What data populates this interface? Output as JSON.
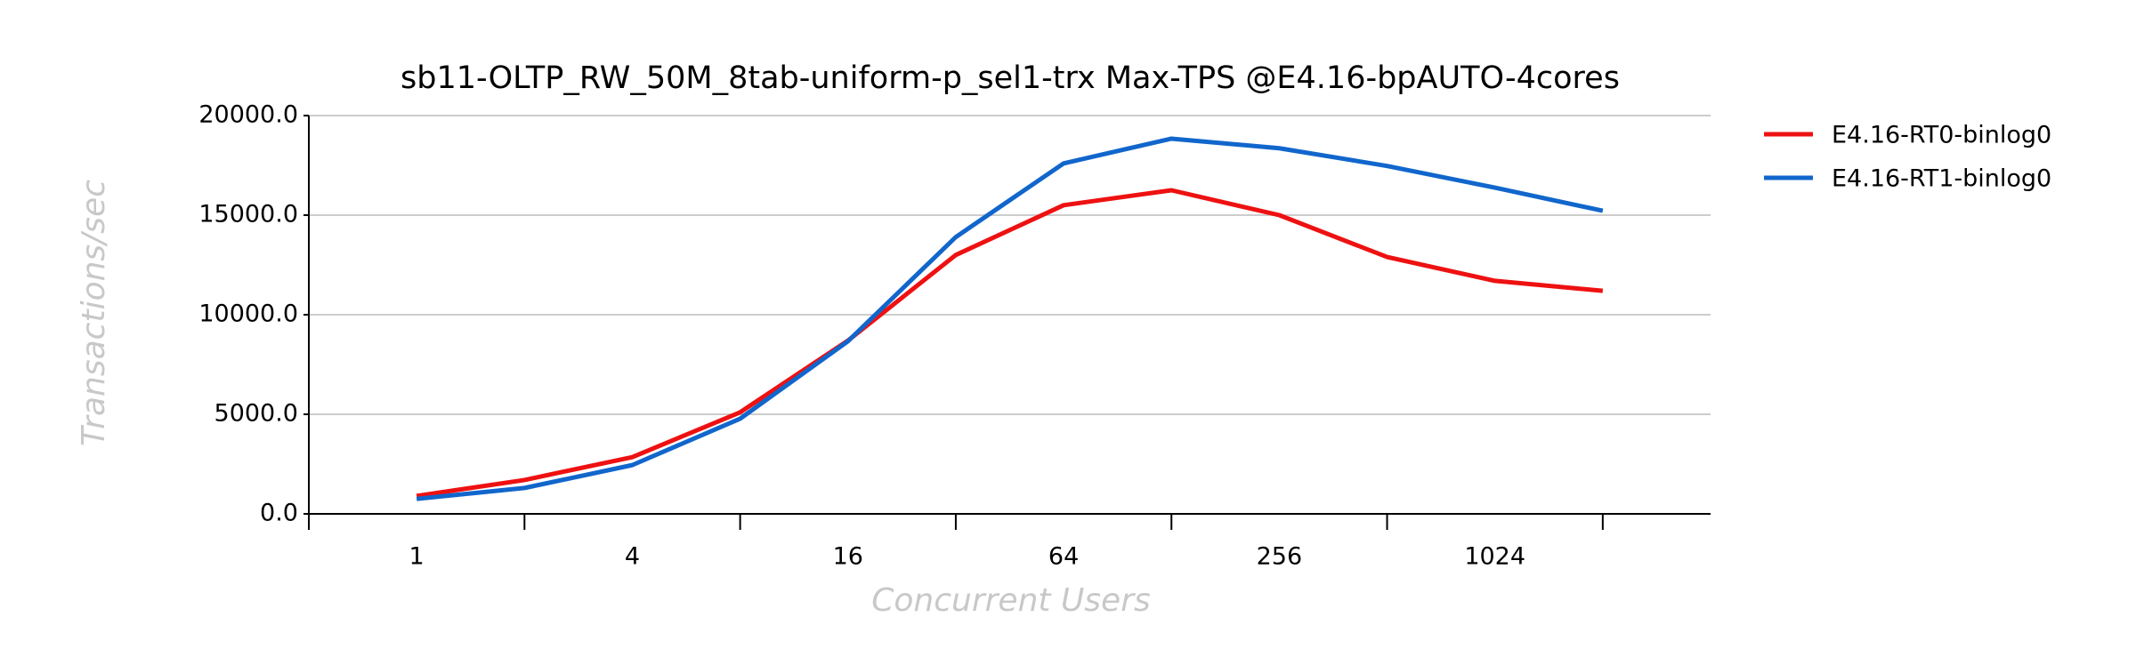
{
  "chart_data": {
    "type": "line",
    "title": "sb11-OLTP_RW_50M_8tab-uniform-p_sel1-trx Max-TPS @E4.16-bpAUTO-4cores",
    "x_label": "Concurrent Users",
    "y_label": "Transactions/sec",
    "categories": [
      "1",
      null,
      "4",
      null,
      "16",
      null,
      "64",
      null,
      "256",
      null,
      "1024",
      null
    ],
    "series": [
      {
        "name": "E4.16-RT0-binlog0",
        "color": "#ee1111",
        "values": [
          900,
          1700,
          2850,
          5100,
          8700,
          13000,
          15500,
          16250,
          15000,
          12900,
          11700,
          11200
        ]
      },
      {
        "name": "E4.16-RT1-binlog0",
        "color": "#1166cc",
        "values": [
          750,
          1300,
          2450,
          4780,
          8670,
          13900,
          17600,
          18840,
          18360,
          17470,
          16380,
          15220
        ]
      }
    ],
    "ylim": [
      0,
      20000
    ],
    "yticks": [
      {
        "value": 0,
        "label": "0.0"
      },
      {
        "value": 5000,
        "label": "5000.0"
      },
      {
        "value": 10000,
        "label": "10000.0"
      },
      {
        "value": 15000,
        "label": "15000.0"
      },
      {
        "value": 20000,
        "label": "20000.0"
      }
    ],
    "grid": true,
    "legend": "right"
  }
}
